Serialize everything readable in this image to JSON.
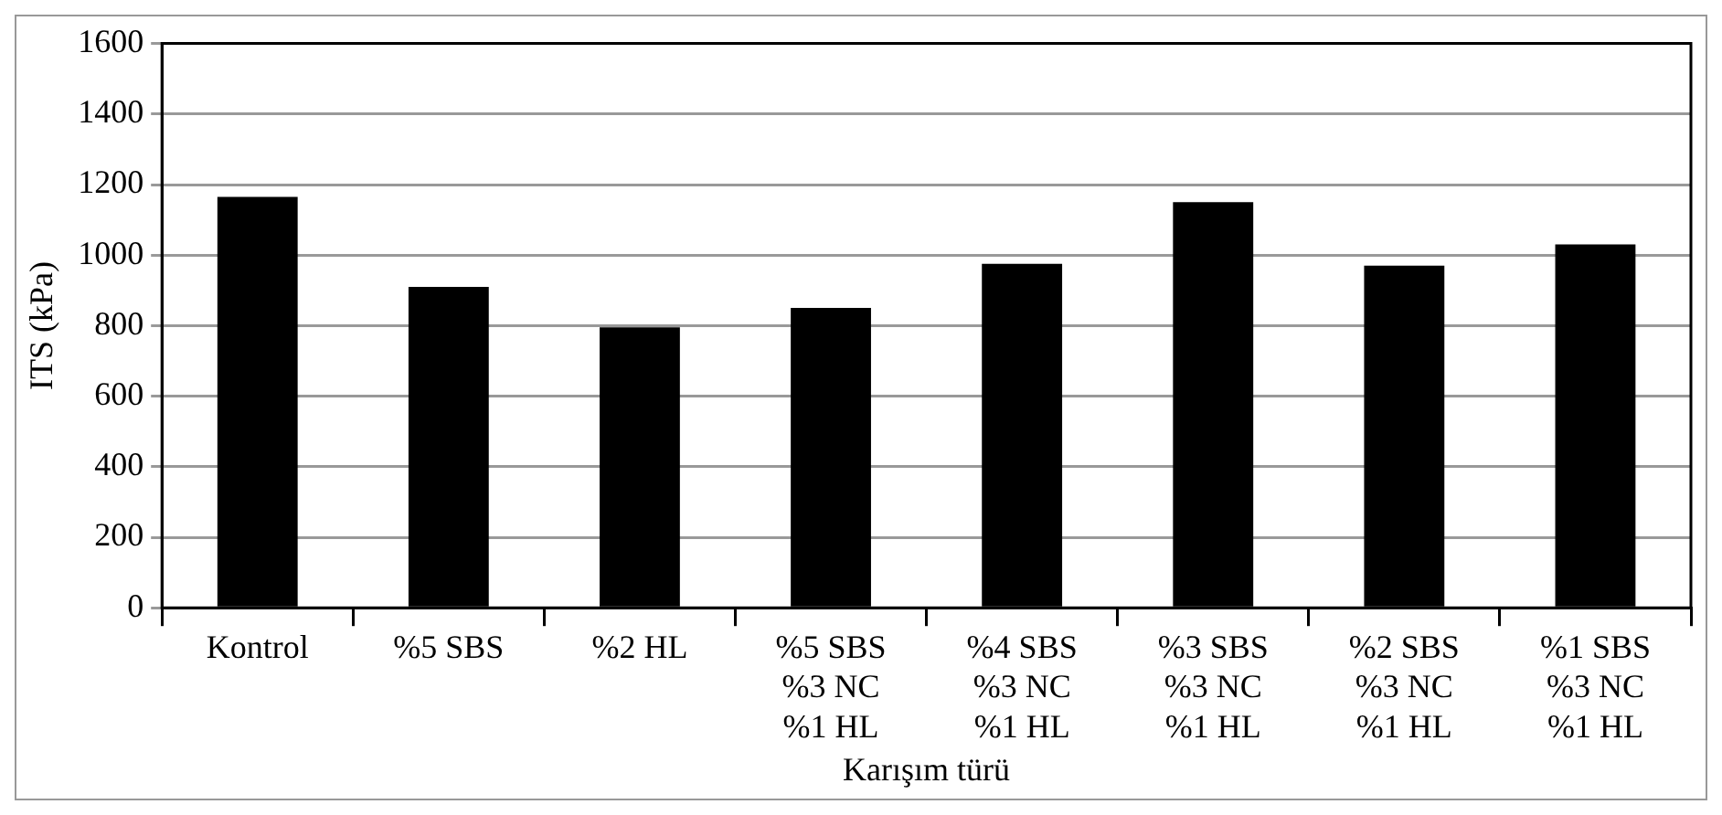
{
  "chart_data": {
    "type": "bar",
    "xlabel": "Karışım türü",
    "ylabel": "ITS (kPa)",
    "categories": [
      "Kontrol",
      "%5 SBS",
      "%2 HL",
      "%5 SBS\n%3 NC\n%1 HL",
      "%4 SBS\n%3 NC\n%1 HL",
      "%3 SBS\n%3 NC\n%1 HL",
      "%2 SBS\n%3 NC\n%1 HL",
      "%1 SBS\n%3 NC\n%1 HL"
    ],
    "values": [
      1165,
      910,
      795,
      850,
      975,
      1150,
      970,
      1030
    ],
    "color": "#000000",
    "ylim": [
      0,
      1600
    ],
    "yticks": [
      0,
      200,
      400,
      600,
      800,
      1000,
      1200,
      1400,
      1600
    ],
    "grid": "y",
    "legend": false
  }
}
